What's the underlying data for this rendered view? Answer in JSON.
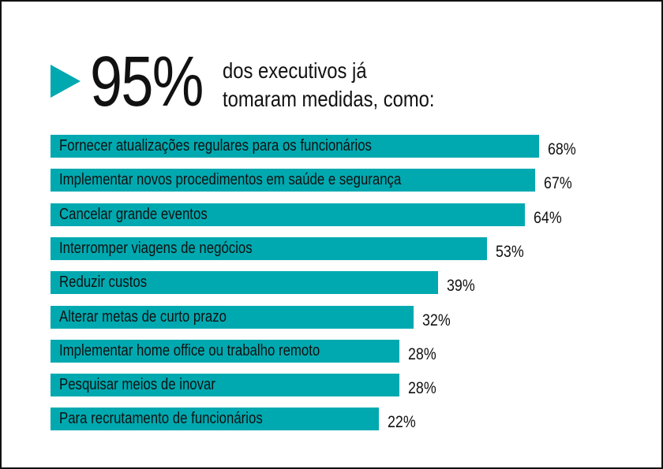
{
  "header": {
    "big_number": "95%",
    "subtitle_line1": "dos executivos já",
    "subtitle_line2": "tomaram medidas, como:"
  },
  "colors": {
    "bar": "#00a9b0",
    "arrow": "#00a9b0",
    "text": "#111111"
  },
  "chart_data": {
    "type": "bar",
    "orientation": "horizontal",
    "categories": [
      "Fornecer atualizações regulares para os funcionários",
      "Implementar novos procedimentos em saúde e segurança",
      "Cancelar grande eventos",
      "Interromper viagens de negócios",
      "Reduzir custos",
      "Alterar metas de curto prazo",
      "Implementar home office ou trabalho remoto",
      "Pesquisar meios de inovar",
      "Para recrutamento de funcionários"
    ],
    "values": [
      68,
      67,
      64,
      53,
      39,
      32,
      28,
      28,
      22
    ],
    "value_labels": [
      "68%",
      "67%",
      "64%",
      "53%",
      "39%",
      "32%",
      "28%",
      "28%",
      "22%"
    ],
    "unit": "%"
  }
}
